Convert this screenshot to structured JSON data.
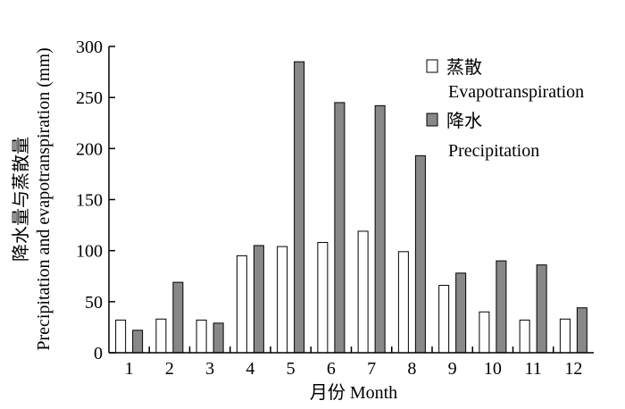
{
  "chart_data": {
    "type": "bar",
    "categories": [
      "1",
      "2",
      "3",
      "4",
      "5",
      "6",
      "7",
      "8",
      "9",
      "10",
      "11",
      "12"
    ],
    "series": [
      {
        "name": "蒸散 Evapotranspiration",
        "name_zh": "蒸散",
        "name_en": "Evapotranspiration",
        "color": "#ffffff",
        "values": [
          32,
          33,
          32,
          95,
          104,
          108,
          119,
          99,
          66,
          40,
          32,
          33
        ]
      },
      {
        "name": "降水 Precipitation",
        "name_zh": "降水",
        "name_en": "Precipitation",
        "color": "#888888",
        "values": [
          22,
          69,
          29,
          105,
          285,
          245,
          242,
          193,
          78,
          90,
          86,
          44
        ]
      }
    ],
    "xlabel": "月份 Month",
    "ylabel_zh": "降水量与蒸散量",
    "ylabel_en": "Precipitation and evapotranspiration (mm)",
    "ylim": [
      0,
      300
    ],
    "yticks": [
      0,
      50,
      100,
      150,
      200,
      250,
      300
    ],
    "grid": false,
    "legend_position": "top-right"
  }
}
